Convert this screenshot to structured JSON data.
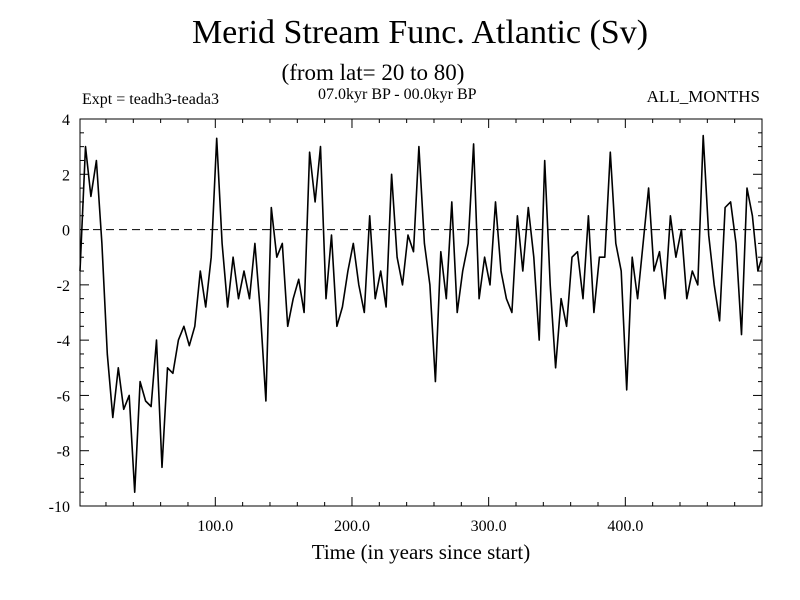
{
  "header": {
    "title": "Merid Stream Func. Atlantic (Sv)",
    "subtitle": "(from lat= 20 to 80)",
    "expt": "Expt = teadh3-teada3",
    "period": "07.0kyr BP - 00.0kyr BP",
    "months": "ALL_MONTHS"
  },
  "chart_data": {
    "type": "line",
    "title": "Merid Stream Func. Atlantic (Sv)",
    "subtitle": "(from lat= 20 to 80)",
    "xlabel": "Time (in years since start)",
    "ylabel": "",
    "xlim": [
      1,
      500
    ],
    "ylim": [
      -10,
      4
    ],
    "xticks": [
      100,
      200,
      300,
      400
    ],
    "xtick_labels": [
      "100.0",
      "200.0",
      "300.0",
      "400.0"
    ],
    "yticks": [
      -10,
      -8,
      -6,
      -4,
      -2,
      0,
      2,
      4
    ],
    "ytick_labels": [
      "-10",
      "-8",
      "-6",
      "-4",
      "-2",
      "0",
      "2",
      "4"
    ],
    "reference_line": {
      "y": 0,
      "style": "dashed"
    },
    "series": [
      {
        "name": "Expt = teadh3-teada3",
        "color": "#000000",
        "x": [
          1,
          5,
          9,
          13,
          17,
          21,
          25,
          29,
          33,
          37,
          41,
          45,
          49,
          53,
          57,
          61,
          65,
          69,
          73,
          77,
          81,
          85,
          89,
          93,
          97,
          101,
          105,
          109,
          113,
          117,
          121,
          125,
          129,
          133,
          137,
          141,
          145,
          149,
          153,
          157,
          161,
          165,
          169,
          173,
          177,
          181,
          185,
          189,
          193,
          197,
          201,
          205,
          209,
          213,
          217,
          221,
          225,
          229,
          233,
          237,
          241,
          245,
          249,
          253,
          257,
          261,
          265,
          269,
          273,
          277,
          281,
          285,
          289,
          293,
          297,
          301,
          305,
          309,
          313,
          317,
          321,
          325,
          329,
          333,
          337,
          341,
          345,
          349,
          353,
          357,
          361,
          365,
          369,
          373,
          377,
          381,
          385,
          389,
          393,
          397,
          401,
          405,
          409,
          413,
          417,
          421,
          425,
          429,
          433,
          437,
          441,
          445,
          449,
          453,
          457,
          461,
          465,
          469,
          473,
          477,
          481,
          485,
          489,
          493,
          497,
          500
        ],
        "values": [
          -1.5,
          3.0,
          1.2,
          2.5,
          -0.5,
          -4.5,
          -6.8,
          -5.0,
          -6.5,
          -6.0,
          -9.5,
          -5.5,
          -6.2,
          -6.4,
          -4.0,
          -8.6,
          -5.0,
          -5.2,
          -4.0,
          -3.5,
          -4.2,
          -3.5,
          -1.5,
          -2.8,
          -1.0,
          3.3,
          -0.5,
          -2.8,
          -1.0,
          -2.5,
          -1.5,
          -2.5,
          -0.5,
          -3.0,
          -6.2,
          0.8,
          -1.0,
          -0.5,
          -3.5,
          -2.5,
          -1.8,
          -3.0,
          2.8,
          1.0,
          3.0,
          -2.5,
          -0.2,
          -3.5,
          -2.8,
          -1.5,
          -0.5,
          -2.0,
          -3.0,
          0.5,
          -2.5,
          -1.5,
          -2.8,
          2.0,
          -1.0,
          -2.0,
          -0.2,
          -0.8,
          3.0,
          -0.5,
          -2.0,
          -5.5,
          -0.8,
          -2.5,
          1.0,
          -3.0,
          -1.5,
          -0.5,
          3.1,
          -2.5,
          -1.0,
          -2.0,
          1.0,
          -1.5,
          -2.5,
          -3.0,
          0.5,
          -1.5,
          0.8,
          -1.0,
          -4.0,
          2.5,
          -2.0,
          -5.0,
          -2.5,
          -3.5,
          -1.0,
          -0.8,
          -2.5,
          0.5,
          -3.0,
          -1.0,
          -1.0,
          2.8,
          -0.5,
          -1.5,
          -5.8,
          -1.0,
          -2.5,
          -0.5,
          1.5,
          -1.5,
          -0.8,
          -2.5,
          0.5,
          -1.0,
          0.0,
          -2.5,
          -1.5,
          -2.0,
          3.4,
          -0.2,
          -2.0,
          -3.3,
          0.8,
          1.0,
          -0.5,
          -3.8,
          1.5,
          0.5,
          -1.5,
          -1.0
        ]
      }
    ]
  }
}
